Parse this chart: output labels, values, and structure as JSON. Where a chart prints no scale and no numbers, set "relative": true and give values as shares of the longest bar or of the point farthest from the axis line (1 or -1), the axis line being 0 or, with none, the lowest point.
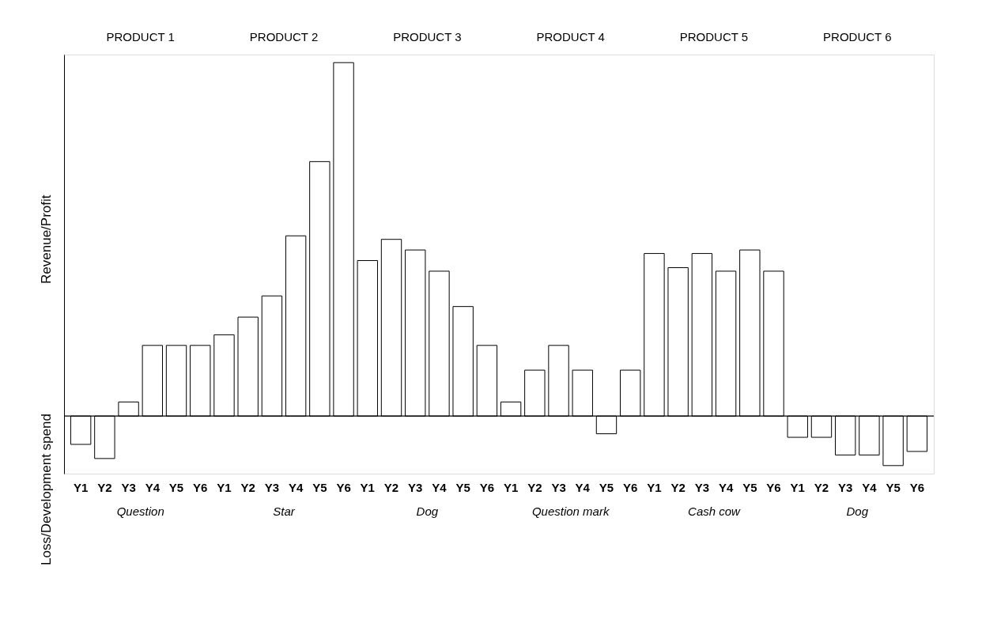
{
  "chart_data": {
    "type": "bar",
    "relative": true,
    "ylabel": "Revenue/Profit",
    "color": "#ffffff",
    "grid": false,
    "categories": [
      "Y1",
      "Y2",
      "Y3",
      "Y4",
      "Y5",
      "Y6",
      "Y1",
      "Y2",
      "Y3",
      "Y4",
      "Y5",
      "Y6",
      "Y1",
      "Y2",
      "Y3",
      "Y4",
      "Y5",
      "Y6",
      "Y1",
      "Y2",
      "Y3",
      "Y4",
      "Y5",
      "Y6",
      "Y1",
      "Y2",
      "Y3",
      "Y4",
      "Y5",
      "Y6",
      "Y1",
      "Y2",
      "Y3",
      "Y4",
      "Y5",
      "Y6"
    ],
    "values": [
      -0.08,
      -0.12,
      0.04,
      0.2,
      0.2,
      0.2,
      0.23,
      0.28,
      0.34,
      0.51,
      0.72,
      1,
      0.44,
      0.5,
      0.47,
      0.41,
      0.31,
      0.2,
      0.04,
      0.13,
      0.2,
      0.13,
      -0.05,
      0.13,
      0.46,
      0.42,
      0.46,
      0.41,
      0.47,
      0.41,
      -0.06,
      -0.06,
      -0.11,
      -0.11,
      -0.14,
      -0.1
    ],
    "annotations": [
      "PRODUCT 1",
      "PRODUCT 2",
      "PRODUCT 3",
      "PRODUCT 4",
      "PRODUCT 5",
      "PRODUCT 6",
      "Question",
      "Star",
      "Dog",
      "Question mark",
      "Cash cow",
      "Dog",
      "Loss/Development spend"
    ]
  }
}
